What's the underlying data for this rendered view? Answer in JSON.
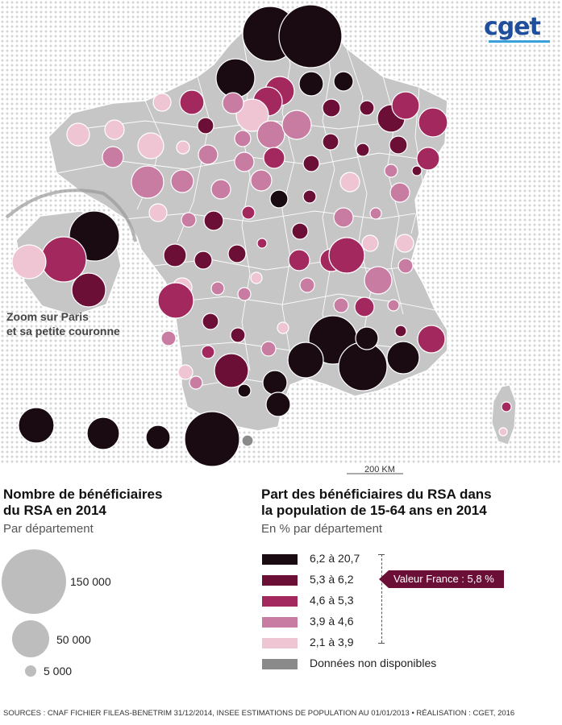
{
  "logo": {
    "text": "cget"
  },
  "map": {
    "zoom_label_line1": "Zoom sur Paris",
    "zoom_label_line2": "et sa petite couronne",
    "scale_label": "200 KM"
  },
  "colors": {
    "c1": "#1a0a12",
    "c2": "#6b0f36",
    "c3": "#a3285e",
    "c4": "#c97ca1",
    "c5": "#efc4d3",
    "na": "#8a8a8a",
    "land": "#c6c6c6",
    "dots": "#d4d4d4"
  },
  "legend_size": {
    "title_line1": "Nombre de bénéficiaires",
    "title_line2": "du RSA en 2014",
    "subtitle": "Par département",
    "items": [
      {
        "label": "150 000",
        "value": 150000
      },
      {
        "label": "50 000",
        "value": 50000
      },
      {
        "label": "5 000",
        "value": 5000
      }
    ]
  },
  "legend_color": {
    "title_line1": "Part des bénéficiaires du RSA dans",
    "title_line2": "la population de 15-64 ans en 2014",
    "subtitle": "En % par département",
    "classes": [
      {
        "label": "6,2 à 20,7",
        "color": "#1a0a12"
      },
      {
        "label": "5,3 à 6,2",
        "color": "#6b0f36"
      },
      {
        "label": "4,6 à 5,3",
        "color": "#a3285e"
      },
      {
        "label": "3,9 à 4,6",
        "color": "#c97ca1"
      },
      {
        "label": "2,1 à 3,9",
        "color": "#efc4d3"
      },
      {
        "label": "Données non disponibles",
        "color": "#8a8a8a"
      }
    ],
    "france_value": "Valeur France : 5,8 %"
  },
  "sources": "SOURCES : CNAF FICHIER FILEAS-BENETRIM 31/12/2014, INSEE ESTIMATIONS DE POPULATION AU 01/01/2013 • RÉALISATION : CGET, 2016"
}
